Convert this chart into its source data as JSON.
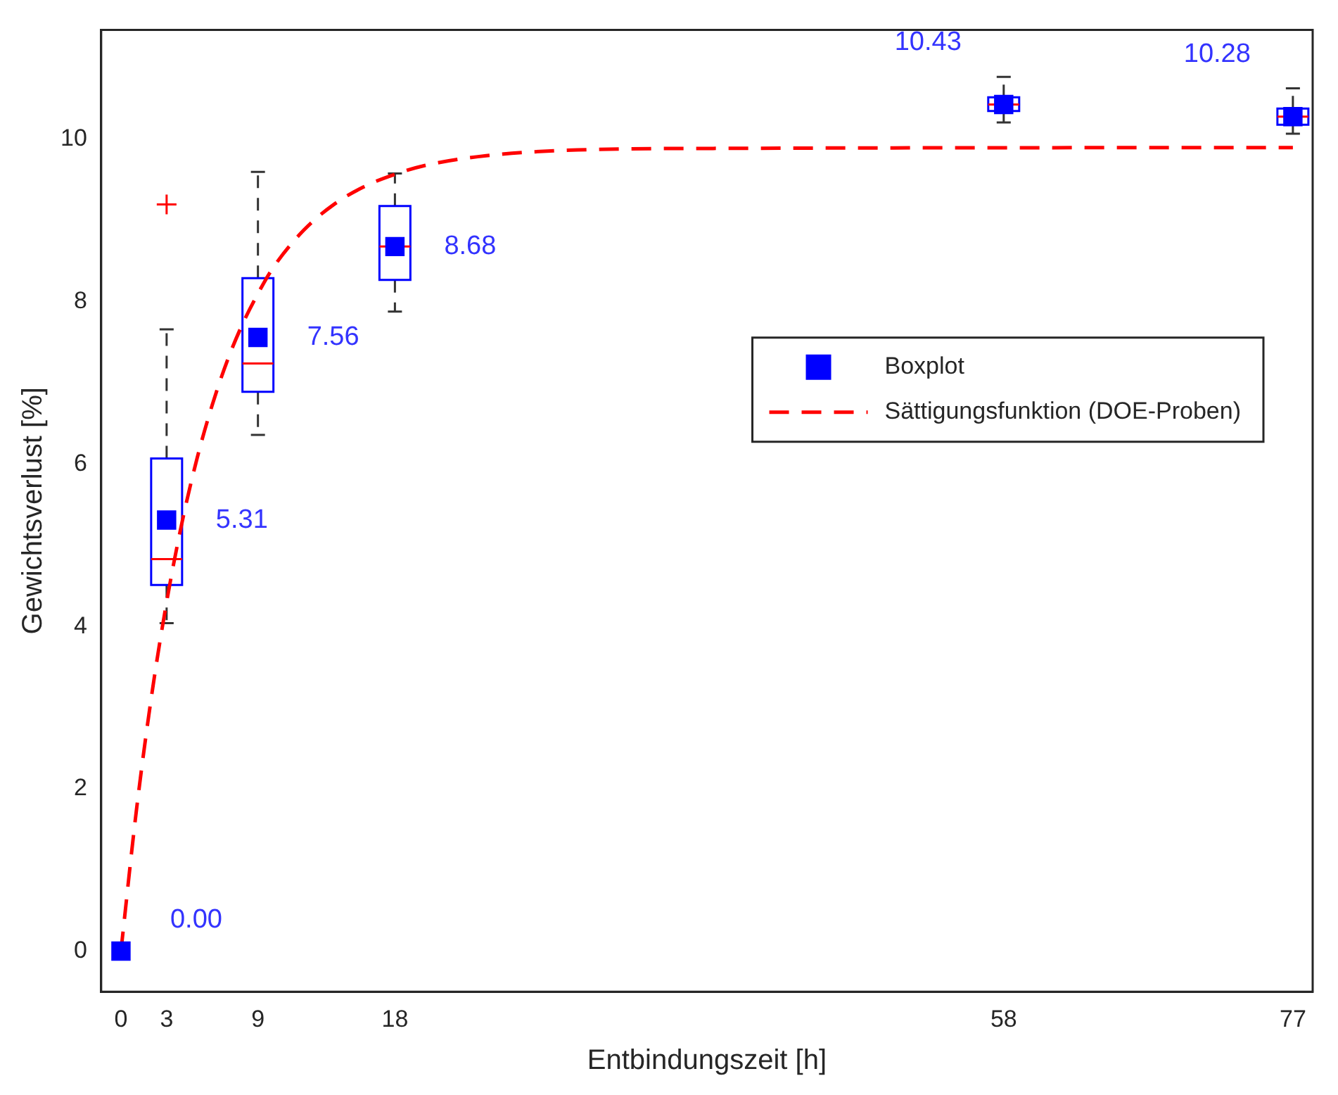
{
  "chart_data": {
    "type": "box",
    "xlabel": "Entbindungszeit [h]",
    "ylabel": "Gewichtsverlust [%]",
    "xlim": [
      -1.3,
      78.3
    ],
    "xticks": [
      0,
      3,
      9,
      18,
      58,
      77
    ],
    "ylim": [
      -0.5,
      11.35
    ],
    "yticks": [
      0,
      2,
      4,
      6,
      8,
      10
    ],
    "grid": false,
    "legend": "right",
    "series": [
      {
        "type": "box",
        "x": [
          3,
          9,
          18,
          58,
          77
        ],
        "color": "#0000ff",
        "boxes": [
          {
            "low": 4.04,
            "q1": 4.51,
            "median": 4.83,
            "q3": 6.07,
            "high": 7.66,
            "outliers": [
              9.2
            ]
          },
          {
            "low": 6.36,
            "q1": 6.89,
            "median": 7.24,
            "q3": 8.29,
            "high": 9.6
          },
          {
            "low": 7.88,
            "q1": 8.27,
            "median": 8.68,
            "q3": 9.18,
            "high": 9.58
          },
          {
            "low": 10.21,
            "q1": 10.35,
            "median": 10.43,
            "q3": 10.52,
            "high": 10.77
          },
          {
            "low": 10.07,
            "q1": 10.18,
            "median": 10.28,
            "q3": 10.38,
            "high": 10.63
          }
        ]
      },
      {
        "type": "scatter",
        "name": "Boxplot",
        "x": [
          0,
          3,
          9,
          18,
          58,
          77
        ],
        "values": [
          0,
          5.31,
          7.56,
          8.68,
          10.43,
          10.28
        ],
        "value_labels": [
          "0.00",
          "5.31",
          "7.56",
          "8.68",
          "10.43",
          "10.28"
        ],
        "color": "#0000ff",
        "marker": "square"
      },
      {
        "type": "line",
        "name": "Sättigungsfunktion (DOE-Proben)",
        "x": [
          0,
          1,
          2,
          3,
          4,
          5,
          6,
          7,
          8,
          9,
          10,
          12,
          14,
          16,
          18,
          20,
          24,
          30,
          40,
          77
        ],
        "values": [
          0,
          1.71,
          3.13,
          4.3,
          5.27,
          6.07,
          6.73,
          7.28,
          7.73,
          8.1,
          8.42,
          8.88,
          9.2,
          9.42,
          9.57,
          9.68,
          9.8,
          9.87,
          9.89,
          9.9
        ],
        "color": "#ff0000",
        "line_style": "dashed",
        "marker": "none"
      }
    ]
  }
}
